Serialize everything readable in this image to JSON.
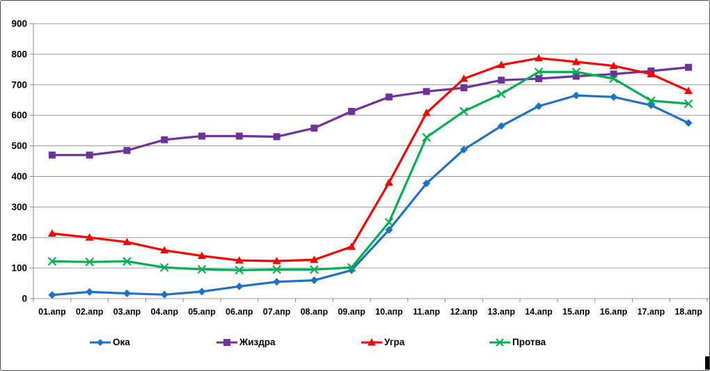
{
  "chart_data": {
    "type": "line",
    "title": "",
    "xlabel": "",
    "ylabel": "",
    "ylim": [
      0,
      900
    ],
    "yticks": [
      0,
      100,
      200,
      300,
      400,
      500,
      600,
      700,
      800,
      900
    ],
    "grid": true,
    "legend_position": "bottom",
    "categories": [
      "01.апр",
      "02.апр",
      "03.апр",
      "04.апр",
      "05.апр",
      "06.апр",
      "07.апр",
      "08.апр",
      "09.апр",
      "10.апр",
      "11.апр",
      "12.апр",
      "13.апр",
      "14.апр",
      "15.апр",
      "16.апр",
      "17.апр",
      "18.апр"
    ],
    "series": [
      {
        "name": "Ока",
        "color": "#1B72C7",
        "marker": "diamond",
        "values": [
          12,
          22,
          17,
          13,
          23,
          40,
          55,
          60,
          93,
          225,
          377,
          488,
          565,
          630,
          665,
          660,
          633,
          575
        ]
      },
      {
        "name": "Жиздра",
        "color": "#7030A0",
        "marker": "square",
        "values": [
          470,
          470,
          485,
          520,
          532,
          532,
          530,
          558,
          613,
          660,
          678,
          690,
          715,
          720,
          728,
          735,
          745,
          757
        ]
      },
      {
        "name": "Угра",
        "color": "#FF0000",
        "marker": "triangle",
        "values": [
          213,
          200,
          185,
          158,
          140,
          125,
          123,
          127,
          170,
          380,
          608,
          720,
          765,
          787,
          775,
          762,
          735,
          680
        ]
      },
      {
        "name": "Протва",
        "color": "#00B050",
        "marker": "x",
        "values": [
          122,
          120,
          122,
          102,
          96,
          93,
          95,
          95,
          102,
          250,
          528,
          613,
          670,
          742,
          742,
          720,
          648,
          638
        ]
      }
    ],
    "axis_color": "#8a8a8a",
    "grid_color": "#9a9a9a",
    "label_color": "#000000"
  }
}
